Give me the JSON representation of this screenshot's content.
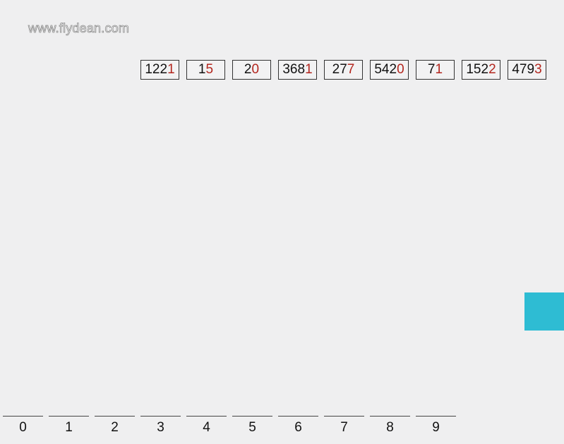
{
  "watermark": "www.flydean.com",
  "numbers": [
    {
      "prefix": "122",
      "last": "1"
    },
    {
      "prefix": "1",
      "last": "5"
    },
    {
      "prefix": "2",
      "last": "0"
    },
    {
      "prefix": "368",
      "last": "1"
    },
    {
      "prefix": "27",
      "last": "7"
    },
    {
      "prefix": "542",
      "last": "0"
    },
    {
      "prefix": "7",
      "last": "1"
    },
    {
      "prefix": "152",
      "last": "2"
    },
    {
      "prefix": "479",
      "last": "3"
    }
  ],
  "buckets": [
    "0",
    "1",
    "2",
    "3",
    "4",
    "5",
    "6",
    "7",
    "8",
    "9"
  ],
  "colors": {
    "background": "#efeff0",
    "digit_highlight": "#b3261e",
    "block": "#2ebcd3"
  }
}
